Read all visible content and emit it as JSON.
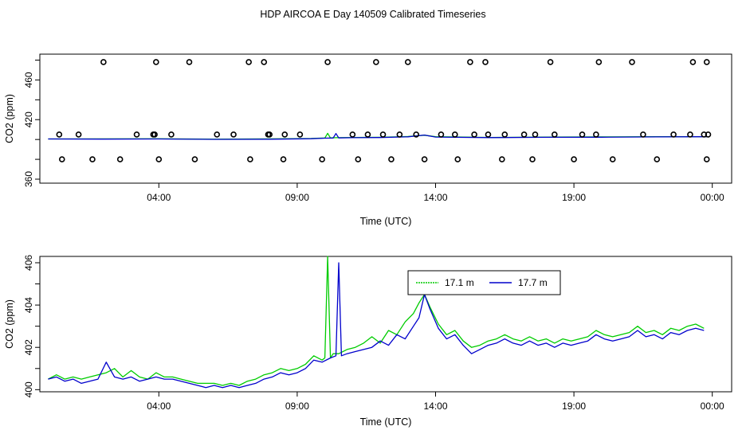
{
  "title": "HDP AIRCOA E  Day 140509  Calibrated Timeseries",
  "chart_data": [
    {
      "type": "line",
      "panel": "top",
      "xlabel": "Time (UTC)",
      "ylabel": "CO2 (ppm)",
      "x_tick_labels": [
        "04:00",
        "09:00",
        "14:00",
        "19:00",
        "00:00"
      ],
      "x_tick_hours": [
        4,
        9,
        14,
        19,
        24
      ],
      "xlim": [
        -0.3,
        24.7
      ],
      "y_ticks": [
        360,
        380,
        400,
        420,
        440,
        460,
        480
      ],
      "y_tick_labels": [
        "360",
        "",
        "",
        "420",
        "",
        "460",
        ""
      ],
      "ylim": [
        356,
        486
      ],
      "colors": {
        "green": "#00cc00",
        "blue": "#0000cc",
        "points": "#000000"
      },
      "series": [
        {
          "color": "#00cc00",
          "x": [
            0,
            2,
            4,
            6,
            8,
            9.5,
            10.0,
            10.1,
            10.2,
            10.4,
            11,
            12,
            13,
            13.6,
            14,
            16,
            18,
            20,
            22,
            23.8
          ],
          "y": [
            400.5,
            400.6,
            400.7,
            400.3,
            400.6,
            401,
            401.5,
            406.2,
            401.6,
            401.8,
            402,
            402.2,
            403,
            404.3,
            402.8,
            402.1,
            402.5,
            402.6,
            402.8,
            402.9
          ]
        },
        {
          "color": "#0000cc",
          "x": [
            0,
            2,
            4,
            6,
            8,
            9.5,
            10.0,
            10.3,
            10.4,
            10.5,
            11,
            12,
            13,
            13.6,
            14,
            16,
            18,
            20,
            22,
            23.8
          ],
          "y": [
            400.5,
            400.4,
            400.5,
            400.1,
            400.3,
            400.8,
            401.3,
            401.5,
            406,
            401.6,
            401.8,
            402,
            402.7,
            404.5,
            402.5,
            401.9,
            402.2,
            402.3,
            402.6,
            402.8
          ]
        }
      ],
      "calibration_points": {
        "x": [
          0.5,
          1.6,
          2.6,
          4.0,
          5.3,
          7.3,
          8.5,
          9.9,
          11.2,
          12.4,
          13.6,
          14.8,
          16.4,
          17.5,
          19.0,
          20.4,
          22.0,
          23.8,
          3.2,
          3.8,
          0.4,
          1.1,
          3.85,
          4.45,
          6.1,
          6.7,
          7.95,
          8.0,
          8.55,
          9.1,
          11.0,
          11.55,
          12.1,
          12.7,
          13.3,
          14.2,
          14.7,
          15.4,
          15.9,
          16.5,
          17.2,
          17.6,
          18.3,
          19.3,
          19.8,
          21.5,
          22.6,
          23.2,
          23.7,
          23.85,
          2.0,
          3.9,
          5.1,
          7.25,
          7.8,
          10.1,
          11.85,
          13.0,
          15.25,
          15.8,
          18.15,
          19.9,
          21.1,
          23.3,
          23.8
        ],
        "y": [
          380,
          380,
          380,
          380,
          380,
          380,
          380,
          380,
          380,
          380,
          380,
          380,
          380,
          380,
          380,
          380,
          380,
          380,
          405,
          405,
          405,
          405,
          405,
          405,
          405,
          405,
          405,
          405,
          405,
          405,
          405,
          405,
          405,
          405,
          405,
          405,
          405,
          405,
          405,
          405,
          405,
          405,
          405,
          405,
          405,
          405,
          405,
          405,
          405,
          405,
          478,
          478,
          478,
          478,
          478,
          478,
          478,
          478,
          478,
          478,
          478,
          478,
          478,
          478,
          478
        ]
      }
    },
    {
      "type": "line",
      "panel": "bottom",
      "xlabel": "Time (UTC)",
      "ylabel": "CO2 (ppm)",
      "x_tick_labels": [
        "04:00",
        "09:00",
        "14:00",
        "19:00",
        "00:00"
      ],
      "x_tick_hours": [
        4,
        9,
        14,
        19,
        24
      ],
      "xlim": [
        -0.3,
        24.7
      ],
      "y_ticks": [
        400,
        401,
        402,
        403,
        404,
        405,
        406
      ],
      "y_tick_labels": [
        "400",
        "",
        "402",
        "",
        "404",
        "",
        "406"
      ],
      "ylim": [
        399.9,
        406.3
      ],
      "legend": {
        "position": "top-center",
        "entries": [
          {
            "name": "17.1 m",
            "color": "#00cc00"
          },
          {
            "name": "17.7 m",
            "color": "#0000cc"
          }
        ]
      },
      "series": [
        {
          "name": "17.1 m",
          "color": "#00cc00",
          "x": [
            0,
            0.3,
            0.6,
            0.9,
            1.2,
            1.5,
            1.8,
            2.1,
            2.4,
            2.7,
            3.0,
            3.3,
            3.6,
            3.9,
            4.2,
            4.5,
            4.8,
            5.1,
            5.4,
            5.7,
            6.0,
            6.3,
            6.6,
            6.9,
            7.2,
            7.5,
            7.8,
            8.1,
            8.4,
            8.7,
            9.0,
            9.3,
            9.6,
            9.9,
            10.0,
            10.1,
            10.2,
            10.3,
            10.5,
            10.8,
            11.1,
            11.4,
            11.7,
            12.0,
            12.3,
            12.6,
            12.9,
            13.2,
            13.4,
            13.6,
            13.8,
            14.1,
            14.4,
            14.7,
            15.0,
            15.3,
            15.6,
            15.9,
            16.2,
            16.5,
            16.8,
            17.1,
            17.4,
            17.7,
            18.0,
            18.3,
            18.6,
            18.9,
            19.2,
            19.5,
            19.8,
            20.1,
            20.4,
            20.7,
            21.0,
            21.3,
            21.6,
            21.9,
            22.2,
            22.5,
            22.8,
            23.1,
            23.4,
            23.7
          ],
          "y": [
            400.5,
            400.7,
            400.5,
            400.6,
            400.5,
            400.6,
            400.7,
            400.8,
            401.0,
            400.6,
            400.9,
            400.6,
            400.5,
            400.8,
            400.6,
            400.6,
            400.5,
            400.4,
            400.3,
            400.3,
            400.3,
            400.2,
            400.3,
            400.2,
            400.4,
            400.5,
            400.7,
            400.8,
            401.0,
            400.9,
            401.0,
            401.2,
            401.6,
            401.4,
            401.5,
            406.3,
            401.5,
            401.7,
            401.7,
            401.9,
            402.0,
            402.2,
            402.5,
            402.2,
            402.8,
            402.6,
            403.2,
            403.6,
            404.1,
            404.5,
            403.9,
            403.1,
            402.6,
            402.8,
            402.3,
            402.0,
            402.1,
            402.3,
            402.4,
            402.6,
            402.4,
            402.3,
            402.5,
            402.3,
            402.4,
            402.2,
            402.4,
            402.3,
            402.4,
            402.5,
            402.8,
            402.6,
            402.5,
            402.6,
            402.7,
            403.0,
            402.7,
            402.8,
            402.6,
            402.9,
            402.8,
            403.0,
            403.1,
            402.9
          ]
        },
        {
          "name": "17.7 m",
          "color": "#0000cc",
          "x": [
            0,
            0.3,
            0.6,
            0.9,
            1.2,
            1.5,
            1.8,
            2.1,
            2.4,
            2.7,
            3.0,
            3.3,
            3.6,
            3.9,
            4.2,
            4.5,
            4.8,
            5.1,
            5.4,
            5.7,
            6.0,
            6.3,
            6.6,
            6.9,
            7.2,
            7.5,
            7.8,
            8.1,
            8.4,
            8.7,
            9.0,
            9.3,
            9.6,
            9.9,
            10.2,
            10.4,
            10.5,
            10.6,
            10.8,
            11.1,
            11.4,
            11.7,
            12.0,
            12.3,
            12.6,
            12.9,
            13.2,
            13.4,
            13.6,
            13.8,
            14.1,
            14.4,
            14.7,
            15.0,
            15.3,
            15.6,
            15.9,
            16.2,
            16.5,
            16.8,
            17.1,
            17.4,
            17.7,
            18.0,
            18.3,
            18.6,
            18.9,
            19.2,
            19.5,
            19.8,
            20.1,
            20.4,
            20.7,
            21.0,
            21.3,
            21.6,
            21.9,
            22.2,
            22.5,
            22.8,
            23.1,
            23.4,
            23.7
          ],
          "y": [
            400.5,
            400.6,
            400.4,
            400.5,
            400.3,
            400.4,
            400.5,
            401.3,
            400.6,
            400.5,
            400.6,
            400.4,
            400.5,
            400.6,
            400.5,
            400.5,
            400.4,
            400.3,
            400.2,
            400.1,
            400.2,
            400.1,
            400.2,
            400.1,
            400.2,
            400.3,
            400.5,
            400.6,
            400.8,
            400.7,
            400.8,
            401.0,
            401.4,
            401.3,
            401.5,
            401.6,
            406.0,
            401.6,
            401.7,
            401.8,
            401.9,
            402.0,
            402.3,
            402.1,
            402.6,
            402.4,
            403.0,
            403.4,
            404.5,
            403.8,
            402.9,
            402.4,
            402.6,
            402.1,
            401.7,
            401.9,
            402.1,
            402.2,
            402.4,
            402.2,
            402.1,
            402.3,
            402.1,
            402.2,
            402.0,
            402.2,
            402.1,
            402.2,
            402.3,
            402.6,
            402.4,
            402.3,
            402.4,
            402.5,
            402.8,
            402.5,
            402.6,
            402.4,
            402.7,
            402.6,
            402.8,
            402.9,
            402.8
          ]
        }
      ]
    }
  ]
}
